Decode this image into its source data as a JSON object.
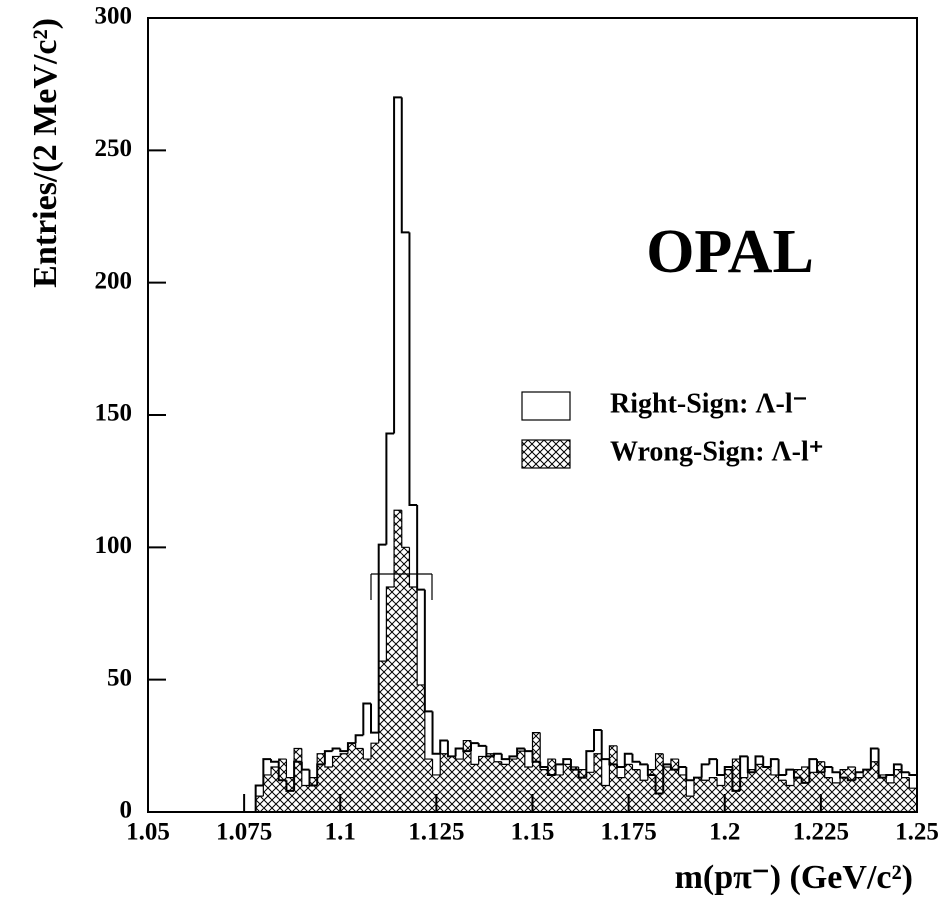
{
  "chart_data": {
    "type": "histogram",
    "xlabel": "m(pπ⁻) (GeV/c²)",
    "ylabel": "Entries/(2 MeV/c²)",
    "annotation": "OPAL",
    "bins": [
      1.05,
      1.052,
      1.054,
      1.056,
      1.058,
      1.06,
      1.062,
      1.064,
      1.066,
      1.068,
      1.07,
      1.072,
      1.074,
      1.076,
      1.078,
      1.08,
      1.082,
      1.084,
      1.086,
      1.088,
      1.09,
      1.092,
      1.094,
      1.096,
      1.098,
      1.1,
      1.102,
      1.104,
      1.106,
      1.108,
      1.11,
      1.112,
      1.114,
      1.116,
      1.118,
      1.12,
      1.122,
      1.124,
      1.126,
      1.128,
      1.13,
      1.132,
      1.134,
      1.136,
      1.138,
      1.14,
      1.142,
      1.144,
      1.146,
      1.148,
      1.15,
      1.152,
      1.154,
      1.156,
      1.158,
      1.16,
      1.162,
      1.164,
      1.166,
      1.168,
      1.17,
      1.172,
      1.174,
      1.176,
      1.178,
      1.18,
      1.182,
      1.184,
      1.186,
      1.188,
      1.19,
      1.192,
      1.194,
      1.196,
      1.198,
      1.2,
      1.202,
      1.204,
      1.206,
      1.208,
      1.21,
      1.212,
      1.214,
      1.216,
      1.218,
      1.22,
      1.222,
      1.224,
      1.226,
      1.228,
      1.23,
      1.232,
      1.234,
      1.236,
      1.238,
      1.24,
      1.242,
      1.244,
      1.246,
      1.248,
      1.25
    ],
    "series": [
      {
        "name": "Right-Sign: Λ-l⁻",
        "color": "#000000",
        "fill": "white",
        "values": [
          0,
          0,
          0,
          0,
          0,
          0,
          0,
          0,
          0,
          0,
          0,
          0,
          0,
          0,
          10,
          20,
          19,
          12,
          8,
          19,
          16,
          10,
          18,
          23,
          24,
          23,
          26,
          29,
          41,
          30,
          101,
          143,
          270,
          219,
          116,
          84,
          38,
          22,
          27,
          21,
          24,
          23,
          26,
          25,
          21,
          22,
          20,
          21,
          24,
          23,
          19,
          17,
          14,
          18,
          20,
          16,
          13,
          23,
          31,
          20,
          18,
          17,
          22,
          19,
          18,
          14,
          7,
          18,
          16,
          17,
          12,
          13,
          18,
          20,
          14,
          17,
          8,
          21,
          15,
          21,
          17,
          20,
          14,
          16,
          13,
          11,
          20,
          15,
          17,
          15,
          13,
          12,
          15,
          16,
          24,
          13,
          14,
          18,
          15,
          14
        ]
      },
      {
        "name": "Wrong-Sign: Λ-l⁺",
        "color": "#000000",
        "fill": "crosshatch",
        "values": [
          0,
          0,
          0,
          0,
          0,
          0,
          0,
          0,
          0,
          0,
          0,
          0,
          0,
          0,
          6,
          14,
          17,
          20,
          13,
          24,
          10,
          13,
          22,
          17,
          21,
          22,
          26,
          24,
          20,
          26,
          57,
          85,
          114,
          100,
          85,
          48,
          20,
          14,
          22,
          21,
          20,
          27,
          18,
          21,
          22,
          19,
          18,
          20,
          23,
          17,
          30,
          16,
          20,
          14,
          18,
          17,
          16,
          15,
          22,
          10,
          25,
          13,
          18,
          16,
          12,
          16,
          22,
          17,
          20,
          14,
          6,
          13,
          12,
          13,
          10,
          16,
          20,
          13,
          16,
          18,
          17,
          14,
          12,
          10,
          16,
          17,
          15,
          19,
          13,
          11,
          16,
          17,
          13,
          16,
          19,
          14,
          11,
          16,
          13,
          9
        ]
      }
    ],
    "xlim": [
      1.05,
      1.25
    ],
    "ylim": [
      0,
      300
    ],
    "xticks": [
      1.05,
      1.075,
      1.1,
      1.125,
      1.15,
      1.175,
      1.2,
      1.225,
      1.25
    ],
    "yticks": [
      0,
      50,
      100,
      150,
      200,
      250,
      300
    ]
  }
}
